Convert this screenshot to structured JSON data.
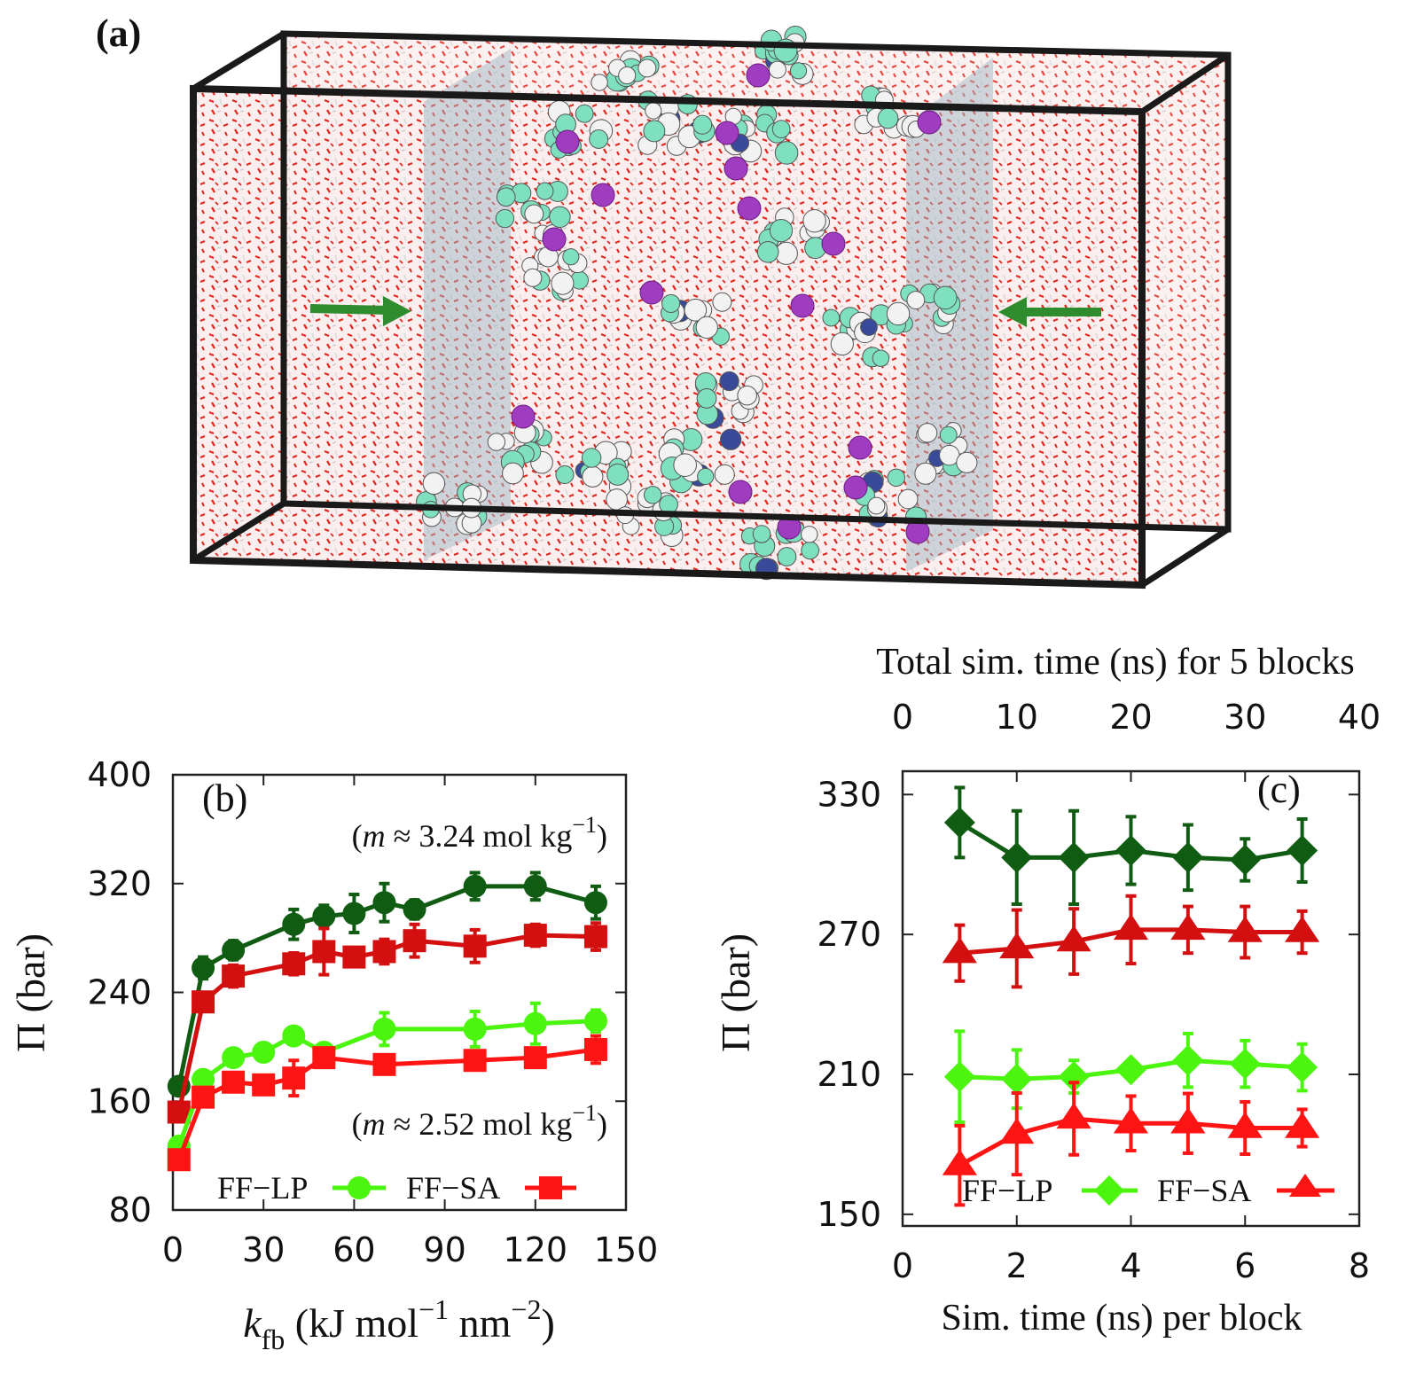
{
  "panel_a": {
    "label": "(a)",
    "colors": {
      "water": "#e0281e",
      "box": "#1a1a1a",
      "slab": "#9fb8c4",
      "arrow": "#2e8b2e",
      "carbon": "#7fe0c0",
      "hydrogen": "#f2f2f2",
      "nitrogen": "#3a4a9a",
      "ion": "#a03cc0"
    }
  },
  "chart_data": [
    {
      "type": "line",
      "panel_label": "(b)",
      "xlabel_main": "k",
      "xlabel_sub": "fb",
      "xlabel_rest": " (kJ mol",
      "xlabel_sup1": "−1",
      "xlabel_mid": " nm",
      "xlabel_sup2": "−2",
      "xlabel_end": ")",
      "ylabel": "Π (bar)",
      "xlim": [
        0,
        150
      ],
      "ylim": [
        80,
        400
      ],
      "xticks": [
        0,
        30,
        60,
        90,
        120,
        150
      ],
      "yticks": [
        80,
        160,
        240,
        320,
        400
      ],
      "annotations": [
        {
          "pre": "(",
          "var": "m",
          "text": " ≈ 3.24 mol kg",
          "sup": "−1",
          "post": ")"
        },
        {
          "pre": "(",
          "var": "m",
          "text": " ≈ 2.52 mol kg",
          "sup": "−1",
          "post": ")"
        }
      ],
      "legend": {
        "entries": [
          "FF−LP",
          "FF−SA"
        ],
        "placement": "bottom"
      },
      "series": [
        {
          "name": "FF−LP",
          "molality": "3.24",
          "color": "#0f5c12",
          "marker": "circle",
          "x": [
            2,
            10,
            20,
            40,
            50,
            60,
            70,
            80,
            100,
            120,
            140
          ],
          "y": [
            171,
            258,
            271,
            290,
            296,
            298,
            306,
            301,
            318,
            318,
            306
          ],
          "err": [
            6,
            8,
            7,
            11,
            8,
            14,
            14,
            7,
            10,
            10,
            12
          ]
        },
        {
          "name": "FF−SA",
          "molality": "3.24",
          "color": "#d40f0f",
          "marker": "square",
          "x": [
            2,
            10,
            20,
            40,
            50,
            60,
            70,
            80,
            100,
            120,
            140
          ],
          "y": [
            152,
            233,
            252,
            261,
            270,
            266,
            270,
            278,
            274,
            282,
            281
          ],
          "err": [
            5,
            6,
            8,
            8,
            17,
            7,
            9,
            12,
            12,
            8,
            10
          ]
        },
        {
          "name": "FF−LP",
          "molality": "2.52",
          "color": "#4cf50e",
          "marker": "circle",
          "x": [
            2,
            10,
            20,
            30,
            40,
            50,
            70,
            100,
            120,
            140
          ],
          "y": [
            127,
            176,
            192,
            196,
            208,
            196,
            213,
            213,
            217,
            219
          ],
          "err": [
            4,
            5,
            5,
            5,
            5,
            5,
            12,
            13,
            15,
            8
          ]
        },
        {
          "name": "FF−SA",
          "molality": "2.52",
          "color": "#ff1414",
          "marker": "square",
          "x": [
            2,
            10,
            20,
            30,
            40,
            50,
            70,
            100,
            120,
            140
          ],
          "y": [
            117,
            163,
            174,
            172,
            177,
            192,
            187,
            190,
            192,
            198
          ],
          "err": [
            4,
            5,
            5,
            5,
            13,
            6,
            5,
            5,
            5,
            10
          ]
        }
      ]
    },
    {
      "type": "line",
      "panel_label": "(c)",
      "xlabel": "Sim. time (ns) per block",
      "x2label": "Total sim. time (ns) for 5 blocks",
      "ylabel": "Π (bar)",
      "xlim": [
        0,
        8
      ],
      "x2lim": [
        0,
        40
      ],
      "ylim": [
        145,
        340
      ],
      "xticks": [
        0,
        2,
        4,
        6,
        8
      ],
      "x2ticks": [
        0,
        10,
        20,
        30,
        40
      ],
      "yticks": [
        150,
        210,
        270,
        330
      ],
      "legend": {
        "entries": [
          "FF−LP",
          "FF−SA"
        ],
        "placement": "bottom"
      },
      "series": [
        {
          "name": "FF−LP",
          "molality": "3.24",
          "color": "#0f5c12",
          "marker": "diamond",
          "x": [
            1,
            2,
            3,
            4,
            5,
            6,
            7
          ],
          "y": [
            318,
            303,
            303,
            306,
            303,
            302,
            306
          ],
          "err": [
            15,
            20,
            20,
            14.5,
            14,
            9,
            13.5
          ]
        },
        {
          "name": "FF−SA",
          "molality": "3.24",
          "color": "#d40f0f",
          "marker": "triangle",
          "x": [
            1,
            2,
            3,
            4,
            5,
            6,
            7
          ],
          "y": [
            262,
            264,
            267,
            272,
            272,
            271,
            271
          ],
          "err": [
            12,
            16.5,
            14,
            14.5,
            10,
            11,
            9
          ]
        },
        {
          "name": "FF−LP",
          "molality": "2.52",
          "color": "#4cf50e",
          "marker": "diamond",
          "x": [
            1,
            2,
            3,
            4,
            5,
            6,
            7
          ],
          "y": [
            209,
            208,
            209,
            212,
            216,
            214.5,
            213
          ],
          "err": [
            19.5,
            12.5,
            7,
            3,
            11.5,
            10,
            10
          ]
        },
        {
          "name": "FF−SA",
          "molality": "2.52",
          "color": "#ff1414",
          "marker": "triangle",
          "x": [
            1,
            2,
            3,
            4,
            5,
            6,
            7
          ],
          "y": [
            171,
            184.5,
            191,
            189,
            189,
            187,
            187
          ],
          "err": [
            17,
            17.5,
            15.5,
            11.7,
            12.8,
            11.2,
            8
          ]
        }
      ]
    }
  ]
}
